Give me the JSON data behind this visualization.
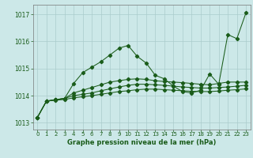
{
  "title": "Graphe pression niveau de la mer (hPa)",
  "bg_color": "#cce8e8",
  "grid_color": "#aacccc",
  "line_color": "#1a5c1a",
  "xlim": [
    -0.5,
    23.5
  ],
  "ylim": [
    1012.75,
    1017.35
  ],
  "yticks": [
    1013,
    1014,
    1015,
    1016,
    1017
  ],
  "xticks": [
    0,
    1,
    2,
    3,
    4,
    5,
    6,
    7,
    8,
    9,
    10,
    11,
    12,
    13,
    14,
    15,
    16,
    17,
    18,
    19,
    20,
    21,
    22,
    23
  ],
  "series": [
    [
      1013.2,
      1013.8,
      1013.85,
      1013.9,
      1014.45,
      1014.85,
      1015.05,
      1015.25,
      1015.5,
      1015.75,
      1015.85,
      1015.45,
      1015.2,
      1014.75,
      1014.62,
      1014.35,
      1014.15,
      1014.1,
      1014.2,
      1014.8,
      1014.42,
      1016.25,
      1016.1,
      1017.05
    ],
    [
      1013.2,
      1013.8,
      1013.85,
      1013.9,
      1014.1,
      1014.2,
      1014.3,
      1014.4,
      1014.5,
      1014.55,
      1014.6,
      1014.62,
      1014.6,
      1014.55,
      1014.52,
      1014.5,
      1014.48,
      1014.45,
      1014.42,
      1014.4,
      1014.45,
      1014.5,
      1014.5,
      1014.5
    ],
    [
      1013.2,
      1013.8,
      1013.85,
      1013.9,
      1014.0,
      1014.05,
      1014.1,
      1014.18,
      1014.25,
      1014.32,
      1014.38,
      1014.42,
      1014.42,
      1014.4,
      1014.38,
      1014.35,
      1014.32,
      1014.3,
      1014.28,
      1014.28,
      1014.3,
      1014.32,
      1014.35,
      1014.38
    ],
    [
      1013.2,
      1013.8,
      1013.83,
      1013.86,
      1013.92,
      1013.96,
      1014.0,
      1014.05,
      1014.1,
      1014.15,
      1014.18,
      1014.22,
      1014.24,
      1014.24,
      1014.22,
      1014.2,
      1014.18,
      1014.16,
      1014.15,
      1014.15,
      1014.17,
      1014.2,
      1014.22,
      1014.25
    ]
  ]
}
